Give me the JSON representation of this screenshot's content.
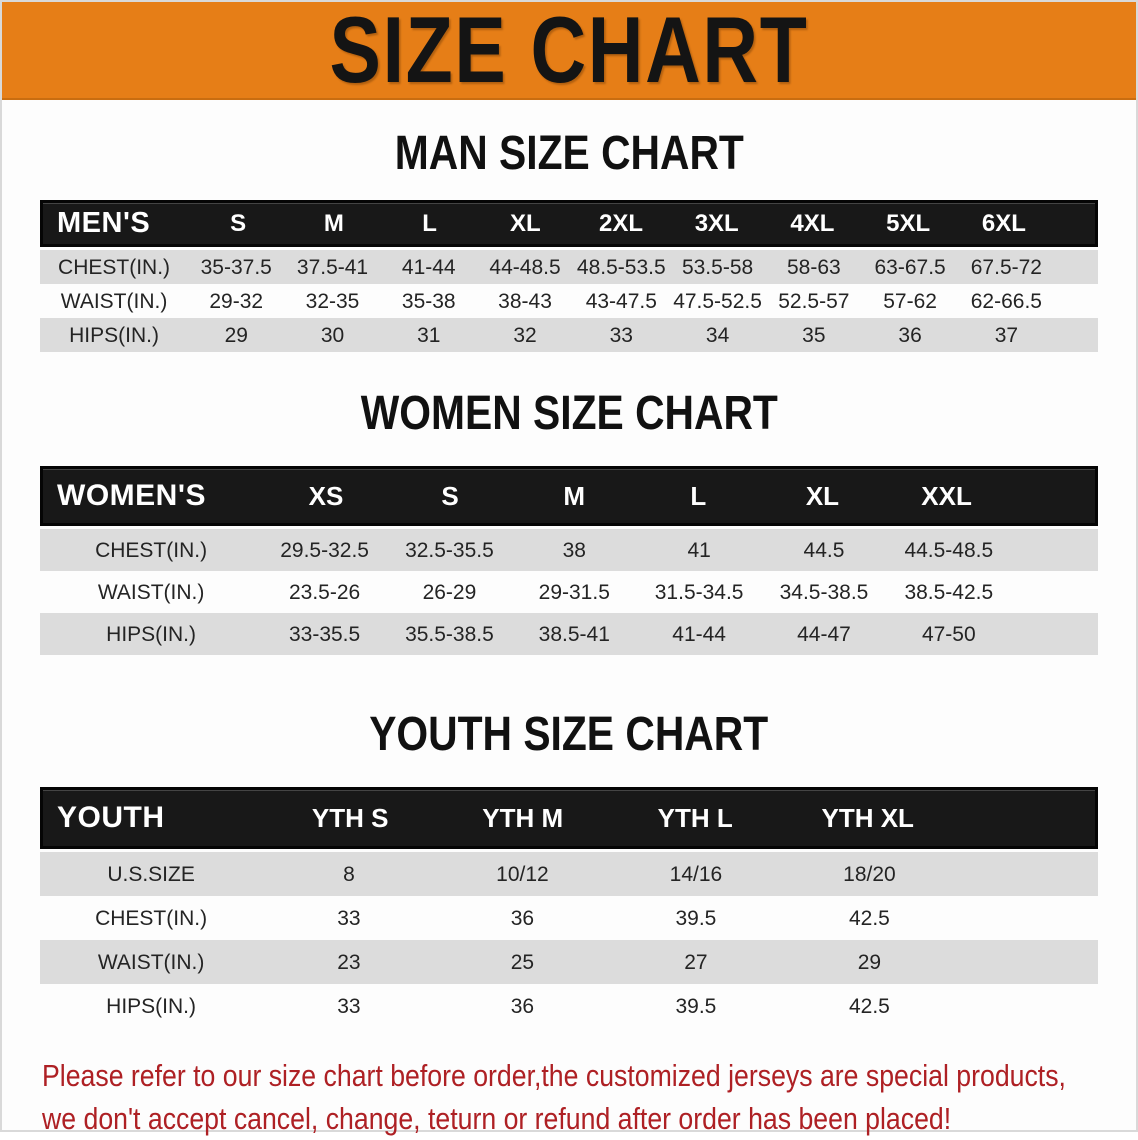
{
  "banner": {
    "title": "SIZE CHART"
  },
  "men": {
    "section_title": "MAN SIZE CHART",
    "header": [
      "MEN'S",
      "S",
      "M",
      "L",
      "XL",
      "2XL",
      "3XL",
      "4XL",
      "5XL",
      "6XL"
    ],
    "rows": [
      [
        "CHEST(IN.)",
        "35-37.5",
        "37.5-41",
        "41-44",
        "44-48.5",
        "48.5-53.5",
        "53.5-58",
        "58-63",
        "63-67.5",
        "67.5-72"
      ],
      [
        "WAIST(IN.)",
        "29-32",
        "32-35",
        "35-38",
        "38-43",
        "43-47.5",
        "47.5-52.5",
        "52.5-57",
        "57-62",
        "62-66.5"
      ],
      [
        "HIPS(IN.)",
        "29",
        "30",
        "31",
        "32",
        "33",
        "34",
        "35",
        "36",
        "37"
      ]
    ]
  },
  "women": {
    "section_title": "WOMEN SIZE CHART",
    "header": [
      "WOMEN'S",
      "XS",
      "S",
      "M",
      "L",
      "XL",
      "XXL"
    ],
    "rows": [
      [
        "CHEST(IN.)",
        "29.5-32.5",
        "32.5-35.5",
        "38",
        "41",
        "44.5",
        "44.5-48.5"
      ],
      [
        "WAIST(IN.)",
        "23.5-26",
        "26-29",
        "29-31.5",
        "31.5-34.5",
        "34.5-38.5",
        "38.5-42.5"
      ],
      [
        "HIPS(IN.)",
        "33-35.5",
        "35.5-38.5",
        "38.5-41",
        "41-44",
        "44-47",
        "47-50"
      ]
    ]
  },
  "youth": {
    "section_title": "YOUTH SIZE CHART",
    "header": [
      "YOUTH",
      "YTH S",
      "YTH M",
      "YTH L",
      "YTH XL"
    ],
    "rows": [
      [
        "U.S.SIZE",
        "8",
        "10/12",
        "14/16",
        "18/20"
      ],
      [
        "CHEST(IN.)",
        "33",
        "36",
        "39.5",
        "42.5"
      ],
      [
        "WAIST(IN.)",
        "23",
        "25",
        "27",
        "29"
      ],
      [
        "HIPS(IN.)",
        "33",
        "36",
        "39.5",
        "42.5"
      ]
    ]
  },
  "footer": {
    "line1": "Please refer to our size chart before order,the customized jerseys are special products,",
    "line2": "we don't accept cancel, change, teturn or refund after order has been placed!"
  },
  "colors": {
    "banner_bg": "#E67E17",
    "table_header_bg": "#181818",
    "row_alt_bg": "#DCDCDC",
    "disclaimer_text": "#AE2024"
  }
}
